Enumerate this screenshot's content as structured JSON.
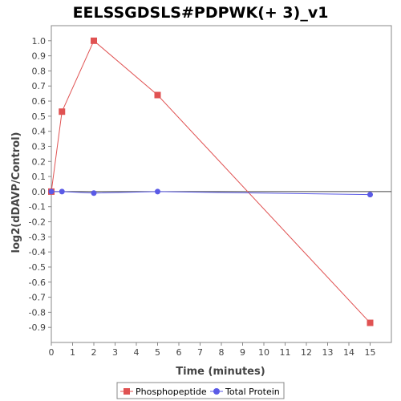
{
  "chart_data": {
    "type": "line",
    "title": "EELSSGDSLS#PDPWK(+ 3)_v1",
    "xlabel": "Time (minutes)",
    "ylabel": "log2(dDAVP/Control)",
    "xlim": [
      0,
      16
    ],
    "ylim": [
      -1.0,
      1.1
    ],
    "xticks": [
      0,
      1,
      2,
      3,
      4,
      5,
      6,
      7,
      8,
      9,
      10,
      11,
      12,
      13,
      14,
      15
    ],
    "yticks": [
      -0.9,
      -0.8,
      -0.7,
      -0.6,
      -0.5,
      -0.4,
      -0.3,
      -0.2,
      -0.1,
      0.0,
      0.1,
      0.2,
      0.3,
      0.4,
      0.5,
      0.6,
      0.7,
      0.8,
      0.9,
      1.0
    ],
    "ytick_labels": [
      "-0.9",
      "-0.8",
      "-0.7",
      "-0.6",
      "-0.5",
      "-0.4",
      "-0.3",
      "-0.2",
      "-0.1",
      "0.0",
      "0.1",
      "0.2",
      "0.3",
      "0.4",
      "0.5",
      "0.6",
      "0.7",
      "0.8",
      "0.9",
      "1.0"
    ],
    "legend_position": "bottom",
    "series": [
      {
        "name": "Phosphopeptide",
        "color": "#e05252",
        "marker": "square",
        "x": [
          0,
          0.5,
          2,
          5,
          15
        ],
        "y": [
          0.0,
          0.53,
          1.0,
          0.64,
          -0.87
        ]
      },
      {
        "name": "Total Protein",
        "color": "#5a5ae6",
        "marker": "circle",
        "x": [
          0,
          0.5,
          2,
          5,
          15
        ],
        "y": [
          0.0,
          0.0,
          -0.01,
          0.0,
          -0.02
        ]
      }
    ]
  }
}
